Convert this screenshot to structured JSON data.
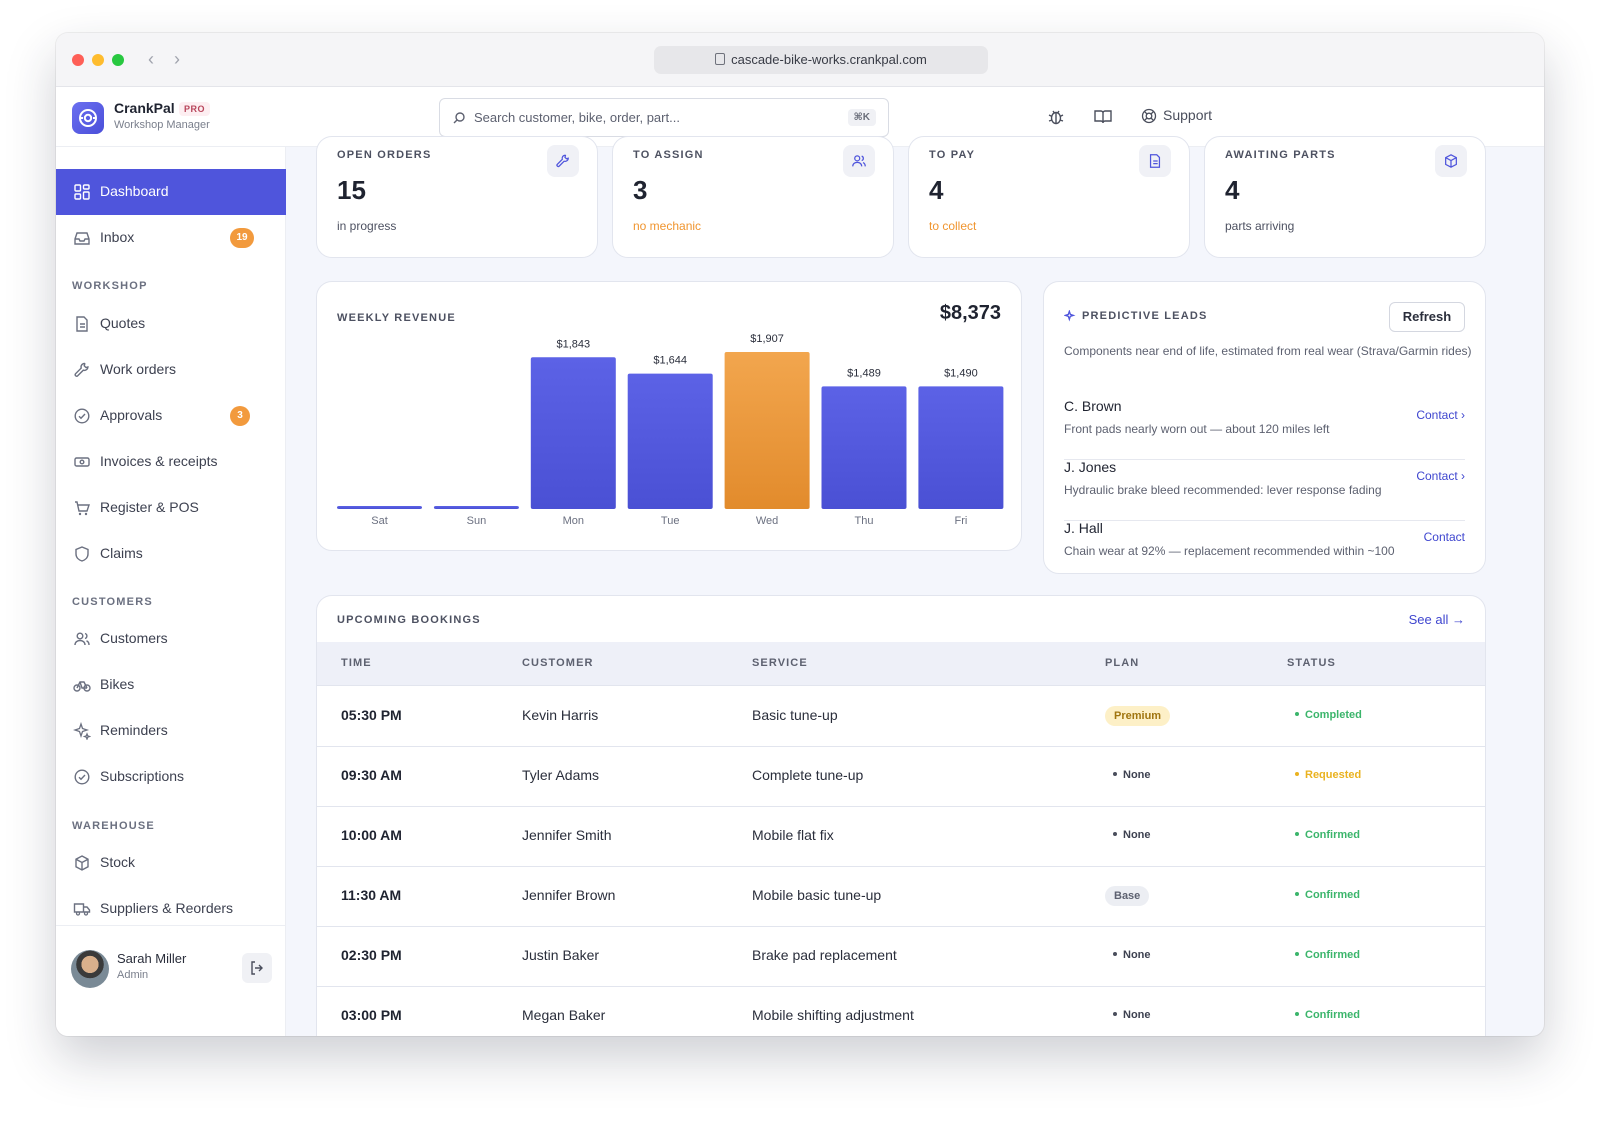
{
  "browser": {
    "url": "cascade-bike-works.crankpal.com"
  },
  "brand": {
    "name": "CrankPal",
    "badge": "PRO",
    "subtitle": "Workshop Manager"
  },
  "search": {
    "placeholder": "Search customer, bike, order, part...",
    "shortcut": "⌘K"
  },
  "topnav": {
    "support_label": "Support"
  },
  "sidebar": {
    "main": [
      {
        "label": "Dashboard",
        "icon": "grid-icon",
        "active": true
      },
      {
        "label": "Inbox",
        "icon": "inbox-icon",
        "badge": "19"
      }
    ],
    "sections": [
      {
        "title": "WORKSHOP",
        "items": [
          {
            "label": "Quotes",
            "icon": "document-icon"
          },
          {
            "label": "Work orders",
            "icon": "wrench-icon"
          },
          {
            "label": "Approvals",
            "icon": "check-circle-icon",
            "badge": "3"
          },
          {
            "label": "Invoices & receipts",
            "icon": "cash-icon"
          },
          {
            "label": "Register & POS",
            "icon": "cart-icon"
          },
          {
            "label": "Claims",
            "icon": "shield-icon"
          }
        ]
      },
      {
        "title": "CUSTOMERS",
        "items": [
          {
            "label": "Customers",
            "icon": "users-icon"
          },
          {
            "label": "Bikes",
            "icon": "bike-icon"
          },
          {
            "label": "Reminders",
            "icon": "sparkle-icon"
          },
          {
            "label": "Subscriptions",
            "icon": "check-circle-icon"
          }
        ]
      },
      {
        "title": "WAREHOUSE",
        "items": [
          {
            "label": "Stock",
            "icon": "box-icon"
          },
          {
            "label": "Suppliers & Reorders",
            "icon": "truck-icon"
          }
        ]
      }
    ],
    "user": {
      "name": "Sarah Miller",
      "role": "Admin"
    }
  },
  "stats": [
    {
      "label": "OPEN ORDERS",
      "value": "15",
      "sub": "in progress",
      "sub_color": "#4d5161",
      "icon": "wrench-icon"
    },
    {
      "label": "TO ASSIGN",
      "value": "3",
      "sub": "no mechanic",
      "sub_color": "#f0952f",
      "icon": "users-icon"
    },
    {
      "label": "TO PAY",
      "value": "4",
      "sub": "to collect",
      "sub_color": "#f0952f",
      "icon": "document-icon"
    },
    {
      "label": "AWAITING PARTS",
      "value": "4",
      "sub": "parts arriving",
      "sub_color": "#4d5161",
      "icon": "box-icon"
    }
  ],
  "revenue": {
    "title": "WEEKLY REVENUE",
    "total": "$8,373"
  },
  "chart_data": {
    "type": "bar",
    "title": "WEEKLY REVENUE",
    "categories": [
      "Sat",
      "Sun",
      "Mon",
      "Tue",
      "Wed",
      "Thu",
      "Fri"
    ],
    "values": [
      0,
      0,
      1843,
      1644,
      1907,
      1489,
      1490
    ],
    "labels": [
      "",
      "",
      "$1,843",
      "$1,644",
      "$1,907",
      "$1,489",
      "$1,490"
    ],
    "highlight_index": 4,
    "colors": {
      "bar": "#5258de",
      "highlight": "#ed9a3f"
    },
    "grid": false
  },
  "leads": {
    "title": "PREDICTIVE LEADS",
    "refresh_label": "Refresh",
    "description": "Components near end of life, estimated from real wear (Strava/Garmin rides)",
    "items": [
      {
        "name": "C. Brown",
        "note": "Front pads nearly worn out — about 120 miles left",
        "action": "Contact ›"
      },
      {
        "name": "J. Jones",
        "note": "Hydraulic brake bleed recommended: lever response fading",
        "action": "Contact ›"
      },
      {
        "name": "J. Hall",
        "note": "Chain wear at 92% — replacement recommended within ~100",
        "action": "Contact"
      }
    ]
  },
  "bookings": {
    "title": "UPCOMING BOOKINGS",
    "see_all": "See all →",
    "columns": [
      "TIME",
      "CUSTOMER",
      "SERVICE",
      "PLAN",
      "STATUS"
    ],
    "rows": [
      {
        "time": "05:30 PM",
        "customer": "Kevin Harris",
        "service": "Basic tune-up",
        "plan": "Premium",
        "plan_style": "premium",
        "status": "Completed",
        "status_color": "#3bb56b"
      },
      {
        "time": "09:30 AM",
        "customer": "Tyler Adams",
        "service": "Complete tune-up",
        "plan": "None",
        "plan_style": "none",
        "status": "Requested",
        "status_color": "#eab21f"
      },
      {
        "time": "10:00 AM",
        "customer": "Jennifer Smith",
        "service": "Mobile flat fix",
        "plan": "None",
        "plan_style": "none",
        "status": "Confirmed",
        "status_color": "#3bb56b"
      },
      {
        "time": "11:30 AM",
        "customer": "Jennifer Brown",
        "service": "Mobile basic tune-up",
        "plan": "Base",
        "plan_style": "base",
        "status": "Confirmed",
        "status_color": "#3bb56b"
      },
      {
        "time": "02:30 PM",
        "customer": "Justin Baker",
        "service": "Brake pad replacement",
        "plan": "None",
        "plan_style": "none",
        "status": "Confirmed",
        "status_color": "#3bb56b"
      },
      {
        "time": "03:00 PM",
        "customer": "Megan Baker",
        "service": "Mobile shifting adjustment",
        "plan": "None",
        "plan_style": "none",
        "status": "Confirmed",
        "status_color": "#3bb56b"
      }
    ]
  }
}
